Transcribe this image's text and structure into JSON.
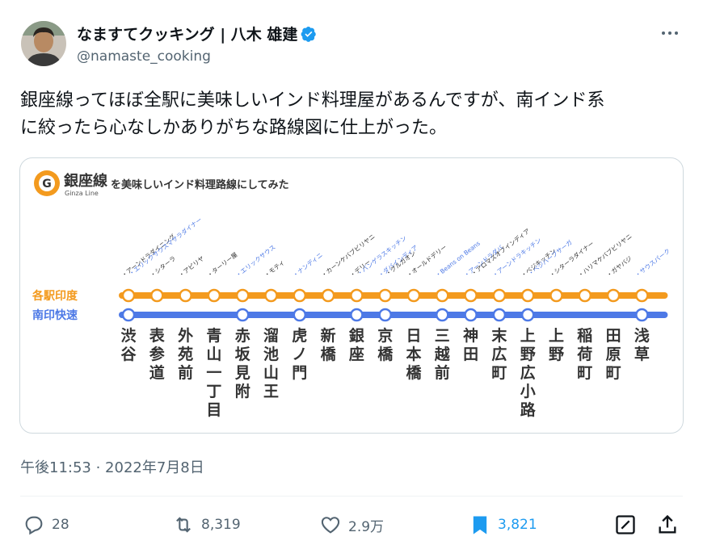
{
  "author": {
    "display_name": "なますてクッキング | 八木 雄建",
    "handle": "@namaste_cooking"
  },
  "tweet_text": [
    "銀座線ってほぼ全駅に美味しいインド料理屋があるんですが、南インド系",
    "に絞ったら心なしかありがちな路線図に仕上がった。"
  ],
  "timestamp": "午後11:53 · 2022年7月8日",
  "actions": {
    "replies": "28",
    "retweets": "8,319",
    "likes": "2.9万",
    "bookmarks": "3,821"
  },
  "map": {
    "logo_letter": "G",
    "title": "銀座線",
    "title_sub": "Ginza Line",
    "caption": "を美味しいインド料理路線にしてみた",
    "line_local_label": "各駅印度",
    "line_express_label": "南印快速",
    "colors": {
      "orange": "#f39a1e",
      "blue": "#4d79e6",
      "black_text": "#333333"
    },
    "stations": [
      {
        "name": "渋谷",
        "express": true,
        "restaurants": [
          {
            "text": "アーンドラダイニング",
            "south": false
          },
          {
            "text": "エリックサウスマサラダイナー",
            "south": true
          }
        ]
      },
      {
        "name": "表参道",
        "express": false,
        "restaurants": [
          {
            "text": "シターラ",
            "south": false
          }
        ]
      },
      {
        "name": "外苑前",
        "express": false,
        "restaurants": [
          {
            "text": "アピリヤ",
            "south": false
          }
        ]
      },
      {
        "name": "青山一丁目",
        "express": false,
        "restaurants": [
          {
            "text": "ターリー屋",
            "south": false
          }
        ]
      },
      {
        "name": "赤坂見附",
        "express": true,
        "restaurants": [
          {
            "text": "エリックサウス",
            "south": true
          }
        ]
      },
      {
        "name": "溜池山王",
        "express": false,
        "restaurants": [
          {
            "text": "モティ",
            "south": false
          }
        ]
      },
      {
        "name": "虎ノ門",
        "express": true,
        "restaurants": [
          {
            "text": "ナンディニ",
            "south": true
          }
        ]
      },
      {
        "name": "新橋",
        "express": false,
        "restaurants": [
          {
            "text": "カーンケバブビリヤニ",
            "south": false
          }
        ]
      },
      {
        "name": "銀座",
        "express": true,
        "restaurants": [
          {
            "text": "デリー",
            "south": false
          },
          {
            "text": "バンゲラスキッチン",
            "south": true
          }
        ]
      },
      {
        "name": "京橋",
        "express": true,
        "restaurants": [
          {
            "text": "ダバインディア",
            "south": true
          },
          {
            "text": "グルガオン",
            "south": false
          }
        ]
      },
      {
        "name": "日本橋",
        "express": false,
        "restaurants": [
          {
            "text": "オールドデリー",
            "south": false
          }
        ]
      },
      {
        "name": "三越前",
        "express": true,
        "restaurants": [
          {
            "text": "Beans on Beans",
            "south": true
          }
        ]
      },
      {
        "name": "神田",
        "express": true,
        "restaurants": [
          {
            "text": "アーンドラダバ",
            "south": true
          },
          {
            "text": "アロマズオブインディア",
            "south": false
          }
        ]
      },
      {
        "name": "末広町",
        "express": true,
        "restaurants": [
          {
            "text": "アーンドラキッチン",
            "south": true
          }
        ]
      },
      {
        "name": "上野広小路",
        "express": true,
        "restaurants": [
          {
            "text": "ベジキッチン",
            "south": false
          },
          {
            "text": "ベジハーブサーガ",
            "south": true
          }
        ]
      },
      {
        "name": "上野",
        "express": false,
        "restaurants": [
          {
            "text": "シターラダイナー",
            "south": false
          }
        ]
      },
      {
        "name": "稲荷町",
        "express": false,
        "restaurants": [
          {
            "text": "ハリマケバブビリヤニ",
            "south": false
          }
        ]
      },
      {
        "name": "田原町",
        "express": false,
        "restaurants": [
          {
            "text": "ガヤバジ",
            "south": false
          }
        ]
      },
      {
        "name": "浅草",
        "express": true,
        "restaurants": [
          {
            "text": "サウスパーク",
            "south": true
          }
        ]
      }
    ]
  }
}
